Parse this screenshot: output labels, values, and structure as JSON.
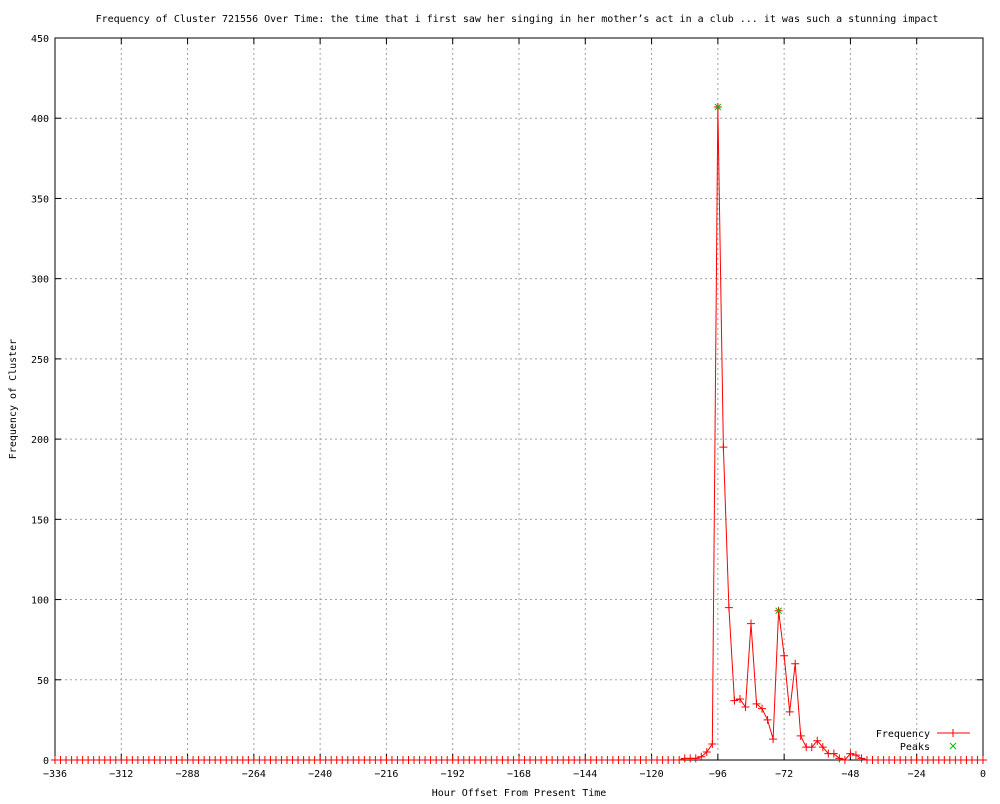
{
  "chart_data": {
    "type": "line",
    "title": "Frequency of Cluster 721556 Over Time: the time that i first saw her singing in her mother’s act in a club ... it was such a stunning impact",
    "xlabel": "Hour Offset From Present Time",
    "ylabel": "Frequency of Cluster",
    "xlim": [
      -336,
      0
    ],
    "ylim": [
      0,
      450
    ],
    "xticks": [
      -336,
      -312,
      -288,
      -264,
      -240,
      -216,
      -192,
      -168,
      -144,
      -120,
      -96,
      -72,
      -48,
      -24,
      0
    ],
    "yticks": [
      0,
      50,
      100,
      150,
      200,
      250,
      300,
      350,
      400,
      450
    ],
    "grid": true,
    "legend_position": "bottom-right",
    "series": [
      {
        "name": "Frequency",
        "color": "#ff0000",
        "marker": "plus",
        "x_step": 2,
        "nonzero_points": [
          [
            -110,
            0
          ],
          [
            -108,
            1
          ],
          [
            -106,
            1
          ],
          [
            -104,
            1
          ],
          [
            -102,
            2
          ],
          [
            -100,
            5
          ],
          [
            -98,
            10
          ],
          [
            -96,
            407
          ],
          [
            -94,
            195
          ],
          [
            -92,
            95
          ],
          [
            -90,
            37
          ],
          [
            -88,
            38
          ],
          [
            -86,
            33
          ],
          [
            -84,
            85
          ],
          [
            -82,
            35
          ],
          [
            -80,
            32
          ],
          [
            -78,
            25
          ],
          [
            -76,
            13
          ],
          [
            -74,
            93
          ],
          [
            -72,
            65
          ],
          [
            -70,
            30
          ],
          [
            -68,
            60
          ],
          [
            -66,
            15
          ],
          [
            -64,
            8
          ],
          [
            -62,
            8
          ],
          [
            -60,
            12
          ],
          [
            -58,
            8
          ],
          [
            -56,
            4
          ],
          [
            -54,
            4
          ],
          [
            -52,
            1
          ],
          [
            -50,
            0
          ],
          [
            -48,
            4
          ],
          [
            -46,
            3
          ],
          [
            -44,
            1
          ]
        ]
      },
      {
        "name": "Peaks",
        "color": "#00c000",
        "marker": "x",
        "points": [
          [
            -96,
            407
          ],
          [
            -74,
            93
          ]
        ]
      }
    ]
  }
}
